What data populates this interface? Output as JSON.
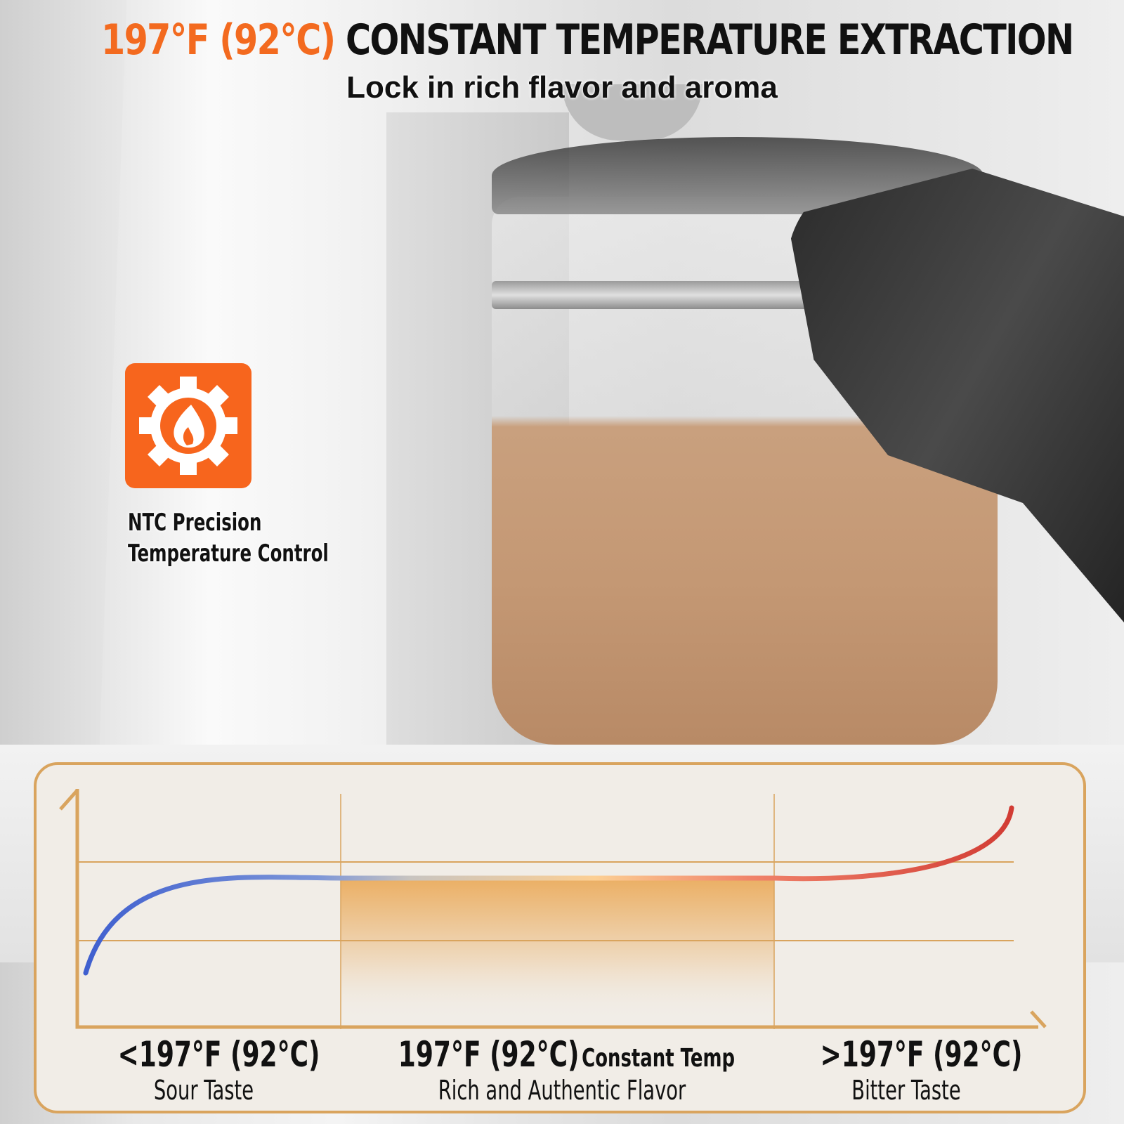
{
  "header": {
    "title_highlight": "197°F (92°C)",
    "title_rest": "CONSTANT TEMPERATURE EXTRACTION",
    "subtitle": "Lock in rich flavor and aroma"
  },
  "feature": {
    "icon": "gear-flame-icon",
    "line1": "NTC Precision",
    "line2": "Temperature Control"
  },
  "diagram": {
    "zones": [
      {
        "temp": "<197°F (92°C)",
        "desc": "Sour Taste"
      },
      {
        "temp": "197°F (92°C)",
        "temp_suffix": "Constant Temp",
        "desc": "Rich and Authentic Flavor"
      },
      {
        "temp": ">197°F (92°C)",
        "desc": "Bitter Taste"
      }
    ]
  },
  "colors": {
    "accent": "#f36a1f",
    "panel_border": "#d9a45e",
    "cold_curve": "#4a6fd0",
    "hot_curve": "#d9453a"
  }
}
